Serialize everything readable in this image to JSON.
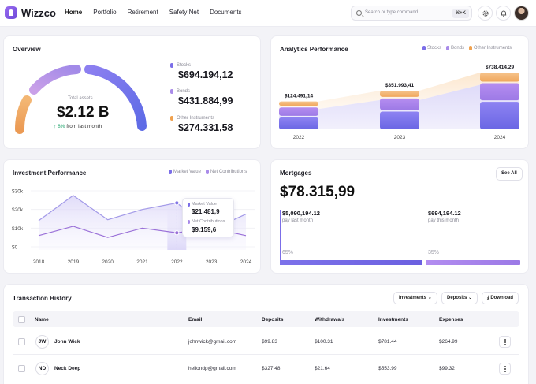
{
  "app": {
    "name": "Wizzco"
  },
  "nav": [
    "Home",
    "Portfolio",
    "Retirement",
    "Safety Net",
    "Documents"
  ],
  "search": {
    "placeholder": "Search or type command",
    "shortcut": "⌘+K"
  },
  "overview": {
    "title": "Overview",
    "total_label": "Total assets",
    "total_value": "$2.12 B",
    "change_pct": "8%",
    "change_text": "from last month",
    "assets": [
      {
        "label": "Stocks",
        "value": "$694.194,12",
        "color": "#7b6ee8"
      },
      {
        "label": "Bonds",
        "value": "$431.884,99",
        "color": "#a98be9"
      },
      {
        "label": "Other Instruments",
        "value": "$274.331,58",
        "color": "#f0a24f"
      }
    ]
  },
  "analytics": {
    "title": "Analytics Performance",
    "legend": [
      {
        "label": "Stocks",
        "color": "#7b6ee8"
      },
      {
        "label": "Bonds",
        "color": "#a98be9"
      },
      {
        "label": "Other Instruments",
        "color": "#f0a24f"
      }
    ],
    "chart_data": {
      "type": "bar",
      "categories": [
        "2022",
        "2023",
        "2024"
      ],
      "totals": [
        "$124.491,14",
        "$351.993,41",
        "$738.414,29"
      ],
      "series": [
        {
          "name": "Stocks",
          "values": [
            124491.14,
            351993.41,
            738414.29
          ]
        }
      ]
    }
  },
  "investment": {
    "title": "Investment Performance",
    "legend": [
      {
        "label": "Market Value",
        "color": "#7b6ee8"
      },
      {
        "label": "Net Contributions",
        "color": "#a98be9"
      }
    ],
    "tooltip": {
      "mv_label": "Market Value",
      "mv_value": "$21.481,9",
      "nc_label": "Net Contributions",
      "nc_value": "$9.159,6"
    },
    "chart_data": {
      "type": "line",
      "x": [
        "2018",
        "2019",
        "2020",
        "2021",
        "2022",
        "2023",
        "2024"
      ],
      "y_ticks": [
        "$30k",
        "$20k",
        "$10k",
        "$0"
      ],
      "ylim": [
        0,
        30000
      ],
      "series": [
        {
          "name": "Market Value",
          "values": [
            14000,
            27500,
            14500,
            20000,
            23500,
            9000,
            17500
          ]
        },
        {
          "name": "Net Contributions",
          "values": [
            6000,
            11000,
            5000,
            10000,
            7500,
            10000,
            6000
          ]
        }
      ]
    }
  },
  "mortgages": {
    "title": "Mortgages",
    "total": "$78.315,99",
    "see_all": "See All",
    "columns": [
      {
        "amount": "$5,090,194.12",
        "label": "pay last month",
        "pct": "65%"
      },
      {
        "amount": "$694,194.12",
        "label": "pay this month",
        "pct": "35%"
      }
    ]
  },
  "transactions": {
    "title": "Transaction History",
    "filters": [
      "Investments",
      "Deposits"
    ],
    "download": "Download",
    "columns": [
      "Name",
      "Email",
      "Deposits",
      "Withdrawals",
      "Investments",
      "Expenses"
    ],
    "rows": [
      {
        "initials": "JW",
        "name": "John Wick",
        "email": "johnwick@gmail.com",
        "deposits": "$99.83",
        "withdrawals": "$100.31",
        "investments": "$781.44",
        "expenses": "$264.99"
      },
      {
        "initials": "ND",
        "name": "Neck Deep",
        "email": "hellondp@gmail.com",
        "deposits": "$327.48",
        "withdrawals": "$21.64",
        "investments": "$553.99",
        "expenses": "$99.32"
      }
    ]
  }
}
